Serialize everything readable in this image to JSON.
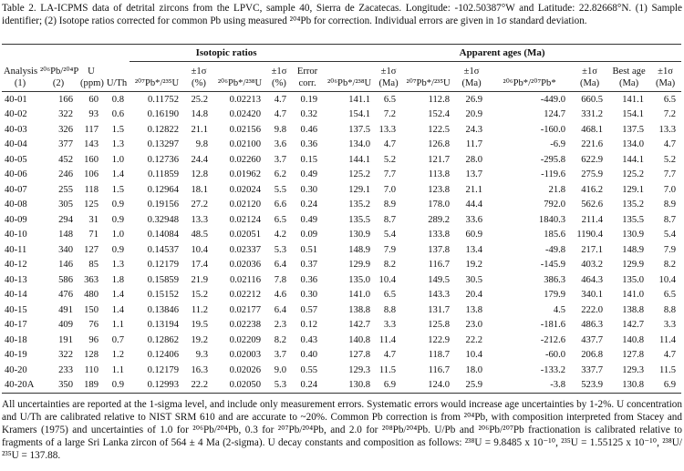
{
  "caption": "Table 2. LA-ICPMS data of detrital zircons from the LPVC, sample 40, Sierra de Zacatecas. Longitude: -102.50387°W and Latitude: 22.82668°N. (1) Sample identifier; (2) Isotope ratios corrected for common Pb using measured ²⁰⁴Pb for correction. Individual errors are given in 1σ standard deviation.",
  "table": {
    "groups": [
      "Isotopic ratios",
      "Apparent ages (Ma)"
    ],
    "header": [
      [
        "Analysis",
        "(1)"
      ],
      [
        "²⁰⁶Pb/²⁰⁴Pb",
        "(2)"
      ],
      [
        "U",
        "(ppm)"
      ],
      [
        "U/Th"
      ],
      [
        "²⁰⁷Pb*/²³⁵U"
      ],
      [
        "±1σ",
        "(%)"
      ],
      [
        "²⁰⁶Pb*/²³⁸U"
      ],
      [
        "±1σ",
        "(%)"
      ],
      [
        "Error",
        "corr."
      ],
      [
        "²⁰⁶Pb*/²³⁸U"
      ],
      [
        "±1σ",
        "(Ma)"
      ],
      [
        "²⁰⁷Pb*/²³⁵U"
      ],
      [
        "±1σ",
        "(Ma)"
      ],
      [
        "²⁰⁶Pb*/²⁰⁷Pb*"
      ],
      [
        "±1σ",
        "(Ma)"
      ],
      [
        "Best age",
        "(Ma)"
      ],
      [
        "±1σ",
        "(Ma)"
      ]
    ],
    "rows": [
      [
        "40-01",
        "166",
        "60",
        "0.8",
        "0.11752",
        "25.2",
        "0.02213",
        "4.7",
        "0.19",
        "141.1",
        "6.5",
        "112.8",
        "26.9",
        "-449.0",
        "660.5",
        "141.1",
        "6.5"
      ],
      [
        "40-02",
        "322",
        "93",
        "0.6",
        "0.16190",
        "14.8",
        "0.02420",
        "4.7",
        "0.32",
        "154.1",
        "7.2",
        "152.4",
        "20.9",
        "124.7",
        "331.2",
        "154.1",
        "7.2"
      ],
      [
        "40-03",
        "326",
        "117",
        "1.5",
        "0.12822",
        "21.1",
        "0.02156",
        "9.8",
        "0.46",
        "137.5",
        "13.3",
        "122.5",
        "24.3",
        "-160.0",
        "468.1",
        "137.5",
        "13.3"
      ],
      [
        "40-04",
        "377",
        "143",
        "1.3",
        "0.13297",
        "9.8",
        "0.02100",
        "3.6",
        "0.36",
        "134.0",
        "4.7",
        "126.8",
        "11.7",
        "-6.9",
        "221.6",
        "134.0",
        "4.7"
      ],
      [
        "40-05",
        "452",
        "160",
        "1.0",
        "0.12736",
        "24.4",
        "0.02260",
        "3.7",
        "0.15",
        "144.1",
        "5.2",
        "121.7",
        "28.0",
        "-295.8",
        "622.9",
        "144.1",
        "5.2"
      ],
      [
        "40-06",
        "246",
        "106",
        "1.4",
        "0.11859",
        "12.8",
        "0.01962",
        "6.2",
        "0.49",
        "125.2",
        "7.7",
        "113.8",
        "13.7",
        "-119.6",
        "275.9",
        "125.2",
        "7.7"
      ],
      [
        "40-07",
        "255",
        "118",
        "1.5",
        "0.12964",
        "18.1",
        "0.02024",
        "5.5",
        "0.30",
        "129.1",
        "7.0",
        "123.8",
        "21.1",
        "21.8",
        "416.2",
        "129.1",
        "7.0"
      ],
      [
        "40-08",
        "305",
        "125",
        "0.9",
        "0.19156",
        "27.2",
        "0.02120",
        "6.6",
        "0.24",
        "135.2",
        "8.9",
        "178.0",
        "44.4",
        "792.0",
        "562.6",
        "135.2",
        "8.9"
      ],
      [
        "40-09",
        "294",
        "31",
        "0.9",
        "0.32948",
        "13.3",
        "0.02124",
        "6.5",
        "0.49",
        "135.5",
        "8.7",
        "289.2",
        "33.6",
        "1840.3",
        "211.4",
        "135.5",
        "8.7"
      ],
      [
        "40-10",
        "148",
        "71",
        "1.0",
        "0.14084",
        "48.5",
        "0.02051",
        "4.2",
        "0.09",
        "130.9",
        "5.4",
        "133.8",
        "60.9",
        "185.6",
        "1190.4",
        "130.9",
        "5.4"
      ],
      [
        "40-11",
        "340",
        "127",
        "0.9",
        "0.14537",
        "10.4",
        "0.02337",
        "5.3",
        "0.51",
        "148.9",
        "7.9",
        "137.8",
        "13.4",
        "-49.8",
        "217.1",
        "148.9",
        "7.9"
      ],
      [
        "40-12",
        "146",
        "85",
        "1.3",
        "0.12179",
        "17.4",
        "0.02036",
        "6.4",
        "0.37",
        "129.9",
        "8.2",
        "116.7",
        "19.2",
        "-145.9",
        "403.2",
        "129.9",
        "8.2"
      ],
      [
        "40-13",
        "586",
        "363",
        "1.8",
        "0.15859",
        "21.9",
        "0.02116",
        "7.8",
        "0.36",
        "135.0",
        "10.4",
        "149.5",
        "30.5",
        "386.3",
        "464.3",
        "135.0",
        "10.4"
      ],
      [
        "40-14",
        "476",
        "480",
        "1.4",
        "0.15152",
        "15.2",
        "0.02212",
        "4.6",
        "0.30",
        "141.0",
        "6.5",
        "143.3",
        "20.4",
        "179.9",
        "340.1",
        "141.0",
        "6.5"
      ],
      [
        "40-15",
        "491",
        "150",
        "1.4",
        "0.13846",
        "11.2",
        "0.02177",
        "6.4",
        "0.57",
        "138.8",
        "8.8",
        "131.7",
        "13.8",
        "4.5",
        "222.0",
        "138.8",
        "8.8"
      ],
      [
        "40-17",
        "409",
        "76",
        "1.1",
        "0.13194",
        "19.5",
        "0.02238",
        "2.3",
        "0.12",
        "142.7",
        "3.3",
        "125.8",
        "23.0",
        "-181.6",
        "486.3",
        "142.7",
        "3.3"
      ],
      [
        "40-18",
        "191",
        "96",
        "0.7",
        "0.12862",
        "19.2",
        "0.02209",
        "8.2",
        "0.43",
        "140.8",
        "11.4",
        "122.9",
        "22.2",
        "-212.6",
        "437.7",
        "140.8",
        "11.4"
      ],
      [
        "40-19",
        "322",
        "128",
        "1.2",
        "0.12406",
        "9.3",
        "0.02003",
        "3.7",
        "0.40",
        "127.8",
        "4.7",
        "118.7",
        "10.4",
        "-60.0",
        "206.8",
        "127.8",
        "4.7"
      ],
      [
        "40-20",
        "233",
        "110",
        "1.1",
        "0.12179",
        "16.3",
        "0.02026",
        "9.0",
        "0.55",
        "129.3",
        "11.5",
        "116.7",
        "18.0",
        "-133.2",
        "337.7",
        "129.3",
        "11.5"
      ],
      [
        "40-20A",
        "350",
        "189",
        "0.9",
        "0.12993",
        "22.2",
        "0.02050",
        "5.3",
        "0.24",
        "130.8",
        "6.9",
        "124.0",
        "25.9",
        "-3.8",
        "523.9",
        "130.8",
        "6.9"
      ]
    ]
  },
  "notes": "All uncertainties are reported at the 1-sigma level, and include only measurement errors. Systematic errors would increase age uncertainties by 1-2%. U concentration and U/Th are calibrated relative to NIST SRM 610 and are accurate to ~20%. Common Pb correction is from ²⁰⁴Pb, with composition interpreted from Stacey and Kramers (1975) and uncertainties of 1.0 for ²⁰⁶Pb/²⁰⁴Pb, 0.3 for ²⁰⁷Pb/²⁰⁴Pb, and 2.0 for ²⁰⁸Pb/²⁰⁴Pb. U/Pb and ²⁰⁶Pb/²⁰⁷Pb fractionation is calibrated relative to fragments of a large Sri Lanka zircon of 564 ± 4 Ma (2-sigma). U decay constants and composition as follows: ²³⁸U = 9.8485 x 10⁻¹⁰, ²³⁵U = 1.55125 x 10⁻¹⁰, ²³⁸U/²³⁵U = 137.88."
}
